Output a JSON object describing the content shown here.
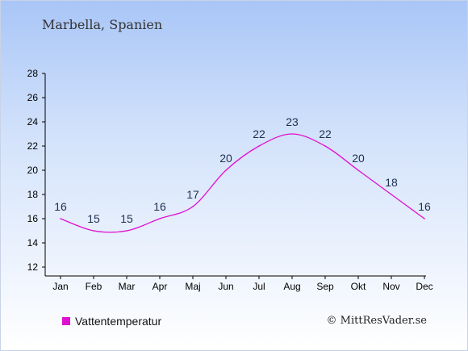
{
  "chart_data": {
    "type": "line",
    "title": "Marbella, Spanien",
    "categories": [
      "Jan",
      "Feb",
      "Mar",
      "Apr",
      "Maj",
      "Jun",
      "Jul",
      "Aug",
      "Sep",
      "Okt",
      "Nov",
      "Dec"
    ],
    "series": [
      {
        "name": "Vattentemperatur",
        "values": [
          16,
          15,
          15,
          16,
          17,
          20,
          22,
          23,
          22,
          20,
          18,
          16
        ],
        "color": "#e010d0"
      }
    ],
    "ylim": [
      12,
      28
    ],
    "yticks": [
      12,
      14,
      16,
      18,
      20,
      22,
      24,
      26,
      28
    ],
    "grid": false,
    "legend_position": "bottom-left"
  },
  "legend": {
    "label": "Vattentemperatur",
    "color": "#e010d0"
  },
  "credit": "© MittResVader.se"
}
